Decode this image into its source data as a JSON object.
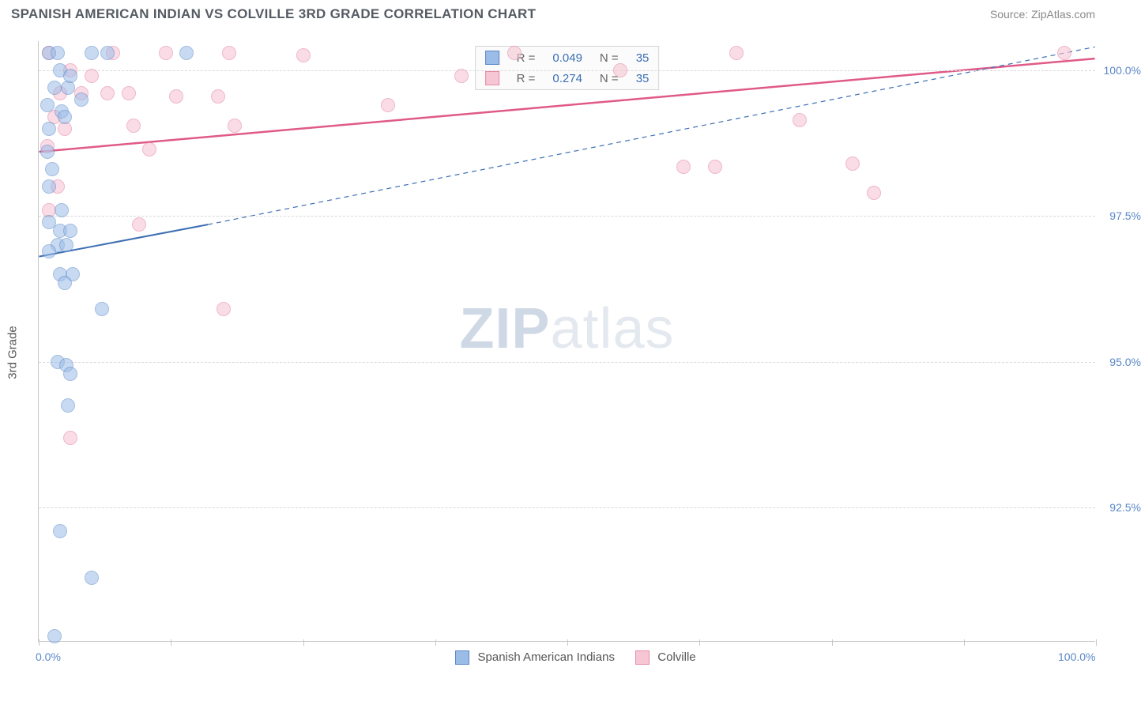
{
  "title": "SPANISH AMERICAN INDIAN VS COLVILLE 3RD GRADE CORRELATION CHART",
  "source": "Source: ZipAtlas.com",
  "watermark": {
    "bold": "ZIP",
    "rest": "atlas"
  },
  "ylabel": "3rd Grade",
  "x": {
    "min": 0,
    "max": 100,
    "min_label": "0.0%",
    "max_label": "100.0%",
    "tick_step": 12.5
  },
  "y": {
    "min": 90.2,
    "max": 100.5,
    "ticks": [
      92.5,
      95.0,
      97.5,
      100.0
    ],
    "tick_labels": [
      "92.5%",
      "95.0%",
      "97.5%",
      "100.0%"
    ]
  },
  "series": {
    "blue": {
      "name": "Spanish American Indians",
      "fill": "#9cbce8",
      "stroke": "#5b87c7",
      "opacity": 0.55,
      "radius": 9,
      "r": "0.049",
      "n": "35",
      "trend": {
        "x1": 0,
        "y1": 96.8,
        "x2_solid": 16,
        "y2_solid": 97.35,
        "x2": 100,
        "y2": 100.4,
        "color": "#3d6fb3",
        "width": 2
      },
      "points": [
        [
          1.0,
          100.3
        ],
        [
          1.8,
          100.3
        ],
        [
          6.5,
          100.3
        ],
        [
          5.0,
          100.3
        ],
        [
          14.0,
          100.3
        ],
        [
          1.5,
          99.7
        ],
        [
          2.8,
          99.7
        ],
        [
          0.8,
          99.4
        ],
        [
          2.2,
          99.3
        ],
        [
          1.0,
          99.0
        ],
        [
          0.8,
          98.6
        ],
        [
          1.3,
          98.3
        ],
        [
          1.0,
          98.0
        ],
        [
          2.2,
          97.6
        ],
        [
          1.0,
          97.4
        ],
        [
          2.0,
          97.25
        ],
        [
          3.0,
          97.25
        ],
        [
          1.8,
          97.0
        ],
        [
          2.6,
          97.0
        ],
        [
          2.0,
          96.5
        ],
        [
          3.2,
          96.5
        ],
        [
          2.5,
          96.35
        ],
        [
          6.0,
          95.9
        ],
        [
          1.8,
          95.0
        ],
        [
          2.6,
          94.95
        ],
        [
          3.0,
          94.8
        ],
        [
          2.8,
          94.25
        ],
        [
          2.0,
          92.1
        ],
        [
          5.0,
          91.3
        ],
        [
          1.5,
          90.3
        ],
        [
          2.0,
          100.0
        ],
        [
          3.0,
          99.9
        ],
        [
          4.0,
          99.5
        ],
        [
          1.0,
          96.9
        ],
        [
          2.5,
          99.2
        ]
      ]
    },
    "pink": {
      "name": "Colville",
      "fill": "#f6c6d4",
      "stroke": "#e68aa6",
      "opacity": 0.6,
      "radius": 9,
      "r": "0.274",
      "n": "35",
      "trend": {
        "x1": 0,
        "y1": 98.6,
        "x2": 100,
        "y2": 100.2,
        "color": "#e05a87",
        "width": 2.5
      },
      "points": [
        [
          1.0,
          100.3
        ],
        [
          7.0,
          100.3
        ],
        [
          12.0,
          100.3
        ],
        [
          18.0,
          100.3
        ],
        [
          25.0,
          100.25
        ],
        [
          45.0,
          100.3
        ],
        [
          66.0,
          100.3
        ],
        [
          97.0,
          100.3
        ],
        [
          2.0,
          99.6
        ],
        [
          4.0,
          99.6
        ],
        [
          6.5,
          99.6
        ],
        [
          8.5,
          99.6
        ],
        [
          13.0,
          99.55
        ],
        [
          17.0,
          99.55
        ],
        [
          33.0,
          99.4
        ],
        [
          72.0,
          99.15
        ],
        [
          1.5,
          99.2
        ],
        [
          2.5,
          99.0
        ],
        [
          9.0,
          99.05
        ],
        [
          18.5,
          99.05
        ],
        [
          0.8,
          98.7
        ],
        [
          10.5,
          98.65
        ],
        [
          61.0,
          98.35
        ],
        [
          64.0,
          98.35
        ],
        [
          77.0,
          98.4
        ],
        [
          1.8,
          98.0
        ],
        [
          79.0,
          97.9
        ],
        [
          1.0,
          97.6
        ],
        [
          9.5,
          97.35
        ],
        [
          17.5,
          95.9
        ],
        [
          3.0,
          93.7
        ],
        [
          3.0,
          100.0
        ],
        [
          5.0,
          99.9
        ],
        [
          40.0,
          99.9
        ],
        [
          55.0,
          100.0
        ]
      ]
    }
  },
  "legend_top_labels": {
    "r": "R =",
    "n": "N ="
  }
}
